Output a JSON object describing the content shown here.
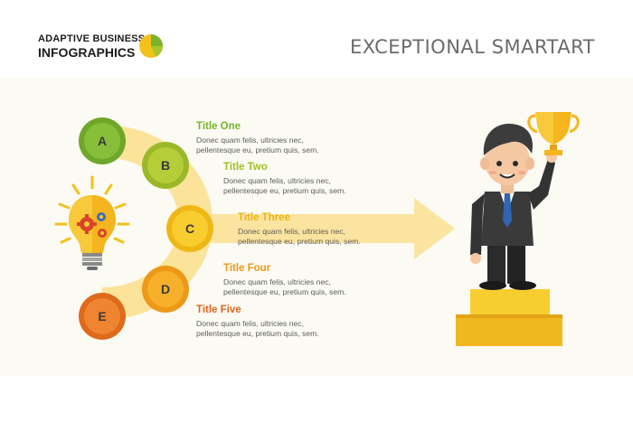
{
  "brand": {
    "line1": "ADAPTIVE BUSINESS",
    "line2": "INFOGRAPHICS"
  },
  "title": "EXCEPTIONAL SMARTART",
  "icons": {
    "logo": "pie-chart-icon",
    "bulb": "lightbulb-gears-icon",
    "person": "businessman-trophy-icon",
    "podium": "podium-icon"
  },
  "colors": {
    "green": "#7ab32e",
    "lime": "#a8c52a",
    "yellow": "#f2c21b",
    "orange": "#f0a21a",
    "deep_orange": "#e3701e",
    "band": "#fbe39a",
    "arrow": "#fbe49f"
  },
  "items": [
    {
      "letter": "A",
      "title": "Title One",
      "desc1": "Donec quam felis, ultricies nec,",
      "desc2": "pellentesque eu, pretium quis, sem."
    },
    {
      "letter": "B",
      "title": "Title Two",
      "desc1": "Donec quam felis, ultricies nec,",
      "desc2": "pellentesque eu, pretium quis, sem."
    },
    {
      "letter": "C",
      "title": "Title Three",
      "desc1": "Donec quam felis, ultricies nec,",
      "desc2": "pellentesque eu, pretium quis, sem."
    },
    {
      "letter": "D",
      "title": "Title Four",
      "desc1": "Donec quam felis, ultricies nec,",
      "desc2": "pellentesque eu, pretium quis, sem."
    },
    {
      "letter": "E",
      "title": "Title Five",
      "desc1": "Donec quam felis, ultricies nec,",
      "desc2": "pellentesque eu, pretium quis, sem."
    }
  ]
}
